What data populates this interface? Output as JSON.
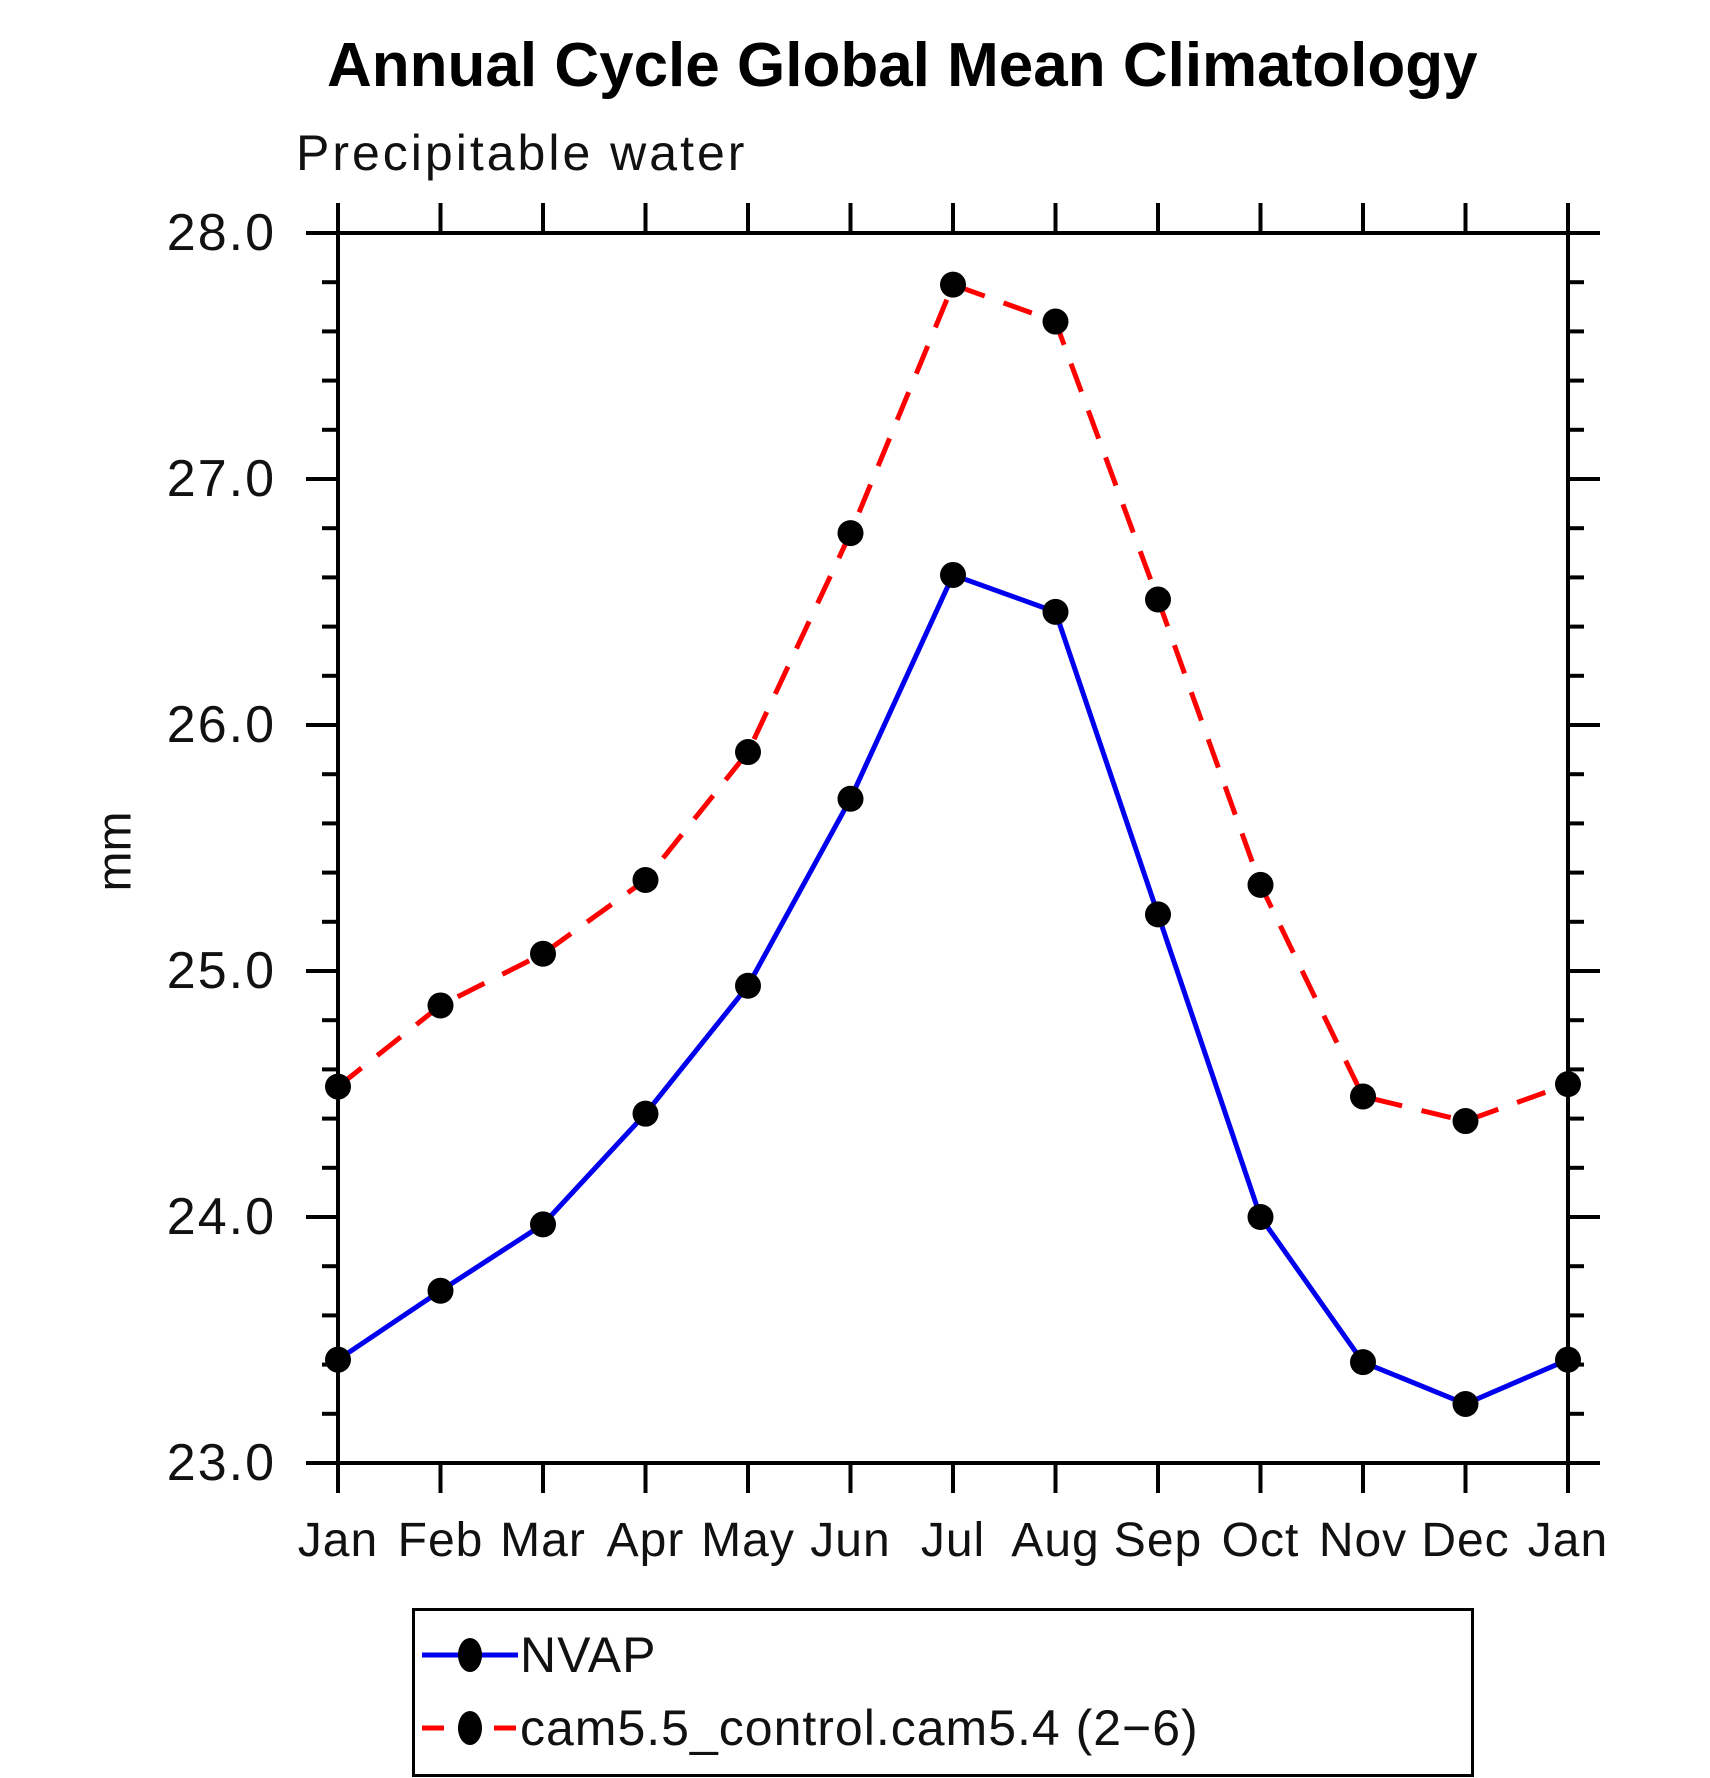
{
  "title": "Annual Cycle Global Mean Climatology",
  "subtitle": "Precipitable water",
  "legend": {
    "entries": [
      {
        "label": "NVAP",
        "color": "#0000ee",
        "style": "solid",
        "marker": "black-dot"
      },
      {
        "label": "cam5.5_control.cam5.4 (2−6)",
        "color": "#ff0000",
        "style": "dashed",
        "marker": "black-dot"
      }
    ]
  },
  "chart_data": {
    "type": "line",
    "title": "Annual Cycle Global Mean Climatology",
    "subtitle": "Precipitable water",
    "xlabel": "",
    "ylabel": "mm",
    "categories": [
      "Jan",
      "Feb",
      "Mar",
      "Apr",
      "May",
      "Jun",
      "Jul",
      "Aug",
      "Sep",
      "Oct",
      "Nov",
      "Dec",
      "Jan"
    ],
    "series": [
      {
        "name": "NVAP",
        "color": "#0000ee",
        "line_style": "solid",
        "marker": "filled-circle",
        "marker_color": "#000000",
        "values": [
          23.42,
          23.7,
          23.97,
          24.42,
          24.94,
          25.7,
          26.61,
          26.46,
          25.23,
          24.0,
          23.41,
          23.24,
          23.42
        ]
      },
      {
        "name": "cam5.5_control.cam5.4 (2−6)",
        "color": "#ff0000",
        "line_style": "dashed",
        "marker": "filled-circle",
        "marker_color": "#000000",
        "values": [
          24.53,
          24.86,
          25.07,
          25.37,
          25.89,
          26.78,
          27.79,
          27.64,
          26.51,
          25.35,
          24.49,
          24.39,
          24.54
        ]
      }
    ],
    "ylim": [
      23.0,
      28.0
    ],
    "y_major_ticks": [
      23,
      24,
      25,
      26,
      27,
      28
    ],
    "y_tick_labels": [
      "23.0",
      "24.0",
      "25.0",
      "26.0",
      "27.0",
      "28.0"
    ],
    "y_minor_step": 0.2,
    "grid": false,
    "legend_position": "bottom"
  }
}
